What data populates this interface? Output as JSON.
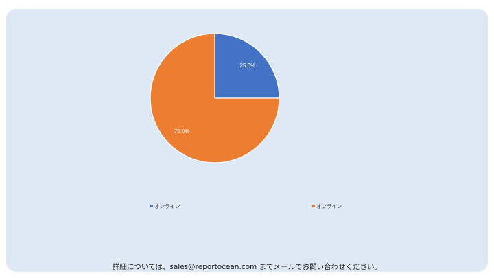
{
  "chart_data": {
    "type": "pie",
    "categories": [
      "オンライン",
      "オフライン"
    ],
    "values": [
      25.0,
      75.0
    ],
    "data_labels": [
      "25.0%",
      "75.0%"
    ],
    "colors": [
      "#4472c4",
      "#ed7d31"
    ],
    "legend_position": "bottom",
    "start_angle": "12 o'clock, clockwise"
  },
  "footer": {
    "text": "詳細については、sales@reportocean.com までメールでお問い合わせください。"
  }
}
